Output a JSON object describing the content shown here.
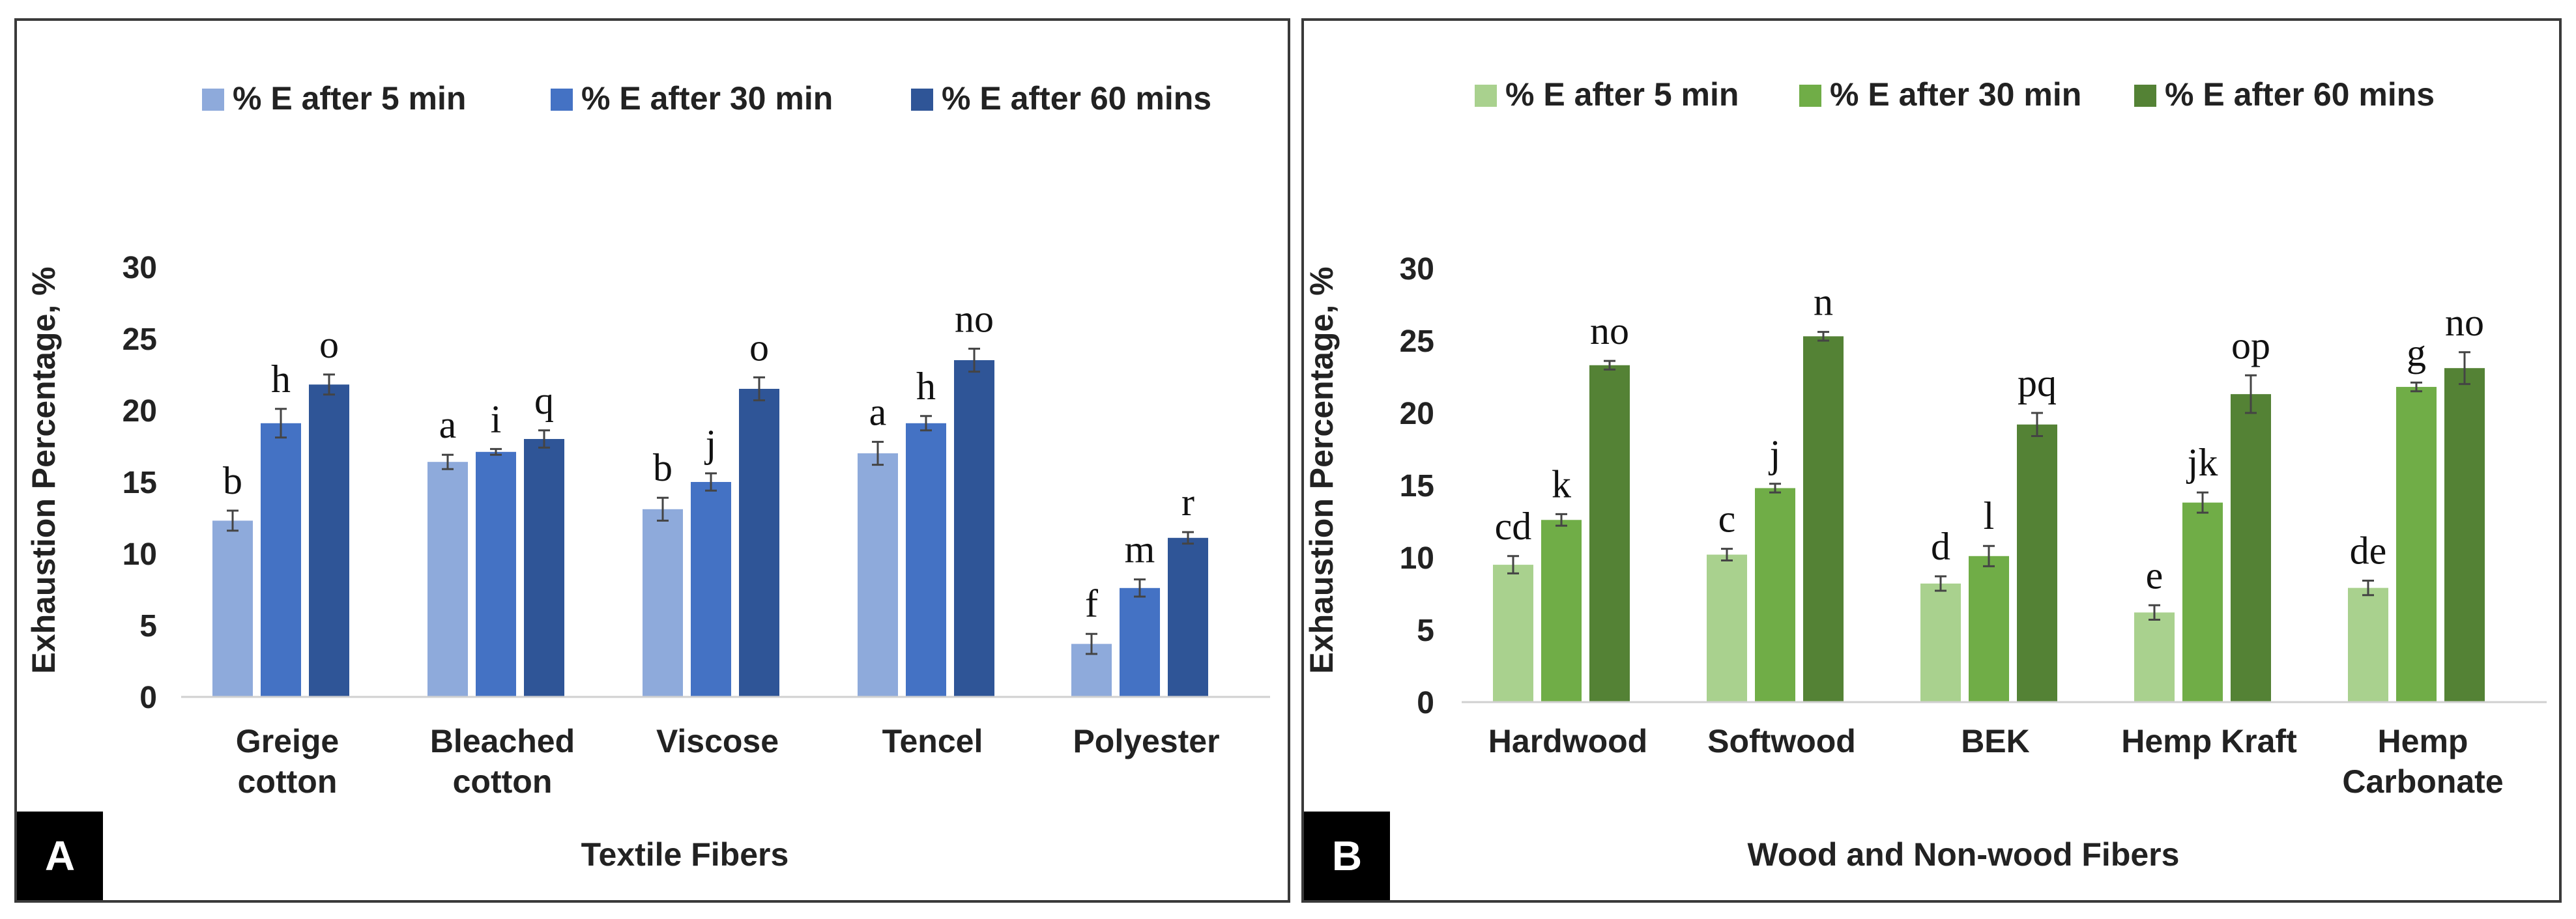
{
  "chart_data": [
    {
      "type": "bar",
      "panel_label": "A",
      "xlabel": "Textile Fibers",
      "ylabel": "Exhaustion Percentage, %",
      "ylim": [
        0,
        30
      ],
      "yticks": [
        "0",
        "5",
        "10",
        "15",
        "20",
        "25",
        "30"
      ],
      "grid": false,
      "legend_position": "top",
      "categories": [
        [
          "Greige",
          "cotton"
        ],
        [
          "Bleached",
          "cotton"
        ],
        [
          "Viscose"
        ],
        [
          "Tencel"
        ],
        [
          "Polyester"
        ]
      ],
      "colors": [
        "#8eaadb",
        "#4472c4",
        "#2f5597"
      ],
      "series": [
        {
          "name": "% E after 5 min",
          "values": [
            12.3,
            16.4,
            13.1,
            17.0,
            3.7
          ],
          "errors": [
            0.7,
            0.5,
            0.8,
            0.8,
            0.7
          ],
          "labels": [
            "b",
            "a",
            "b",
            "a",
            "f"
          ]
        },
        {
          "name": "% E after 30 min",
          "values": [
            19.1,
            17.1,
            15.0,
            19.1,
            7.6
          ],
          "errors": [
            1.0,
            0.2,
            0.6,
            0.5,
            0.6
          ],
          "labels": [
            "h",
            "i",
            "j",
            "h",
            "m"
          ]
        },
        {
          "name": "% E after 60 mins",
          "values": [
            21.8,
            18.0,
            21.5,
            23.5,
            11.1
          ],
          "errors": [
            0.7,
            0.6,
            0.8,
            0.8,
            0.4
          ],
          "labels": [
            "o",
            "q",
            "o",
            "no",
            "r"
          ]
        }
      ]
    },
    {
      "type": "bar",
      "panel_label": "B",
      "xlabel": "Wood and Non-wood Fibers",
      "ylabel": "Exhaustion Percentage, %",
      "ylim": [
        0,
        30
      ],
      "yticks": [
        "0",
        "5",
        "10",
        "15",
        "20",
        "25",
        "30"
      ],
      "grid": false,
      "legend_position": "top",
      "categories": [
        [
          "Hardwood"
        ],
        [
          "Softwood"
        ],
        [
          "BEK"
        ],
        [
          "Hemp Kraft"
        ],
        [
          "Hemp",
          "Carbonate"
        ]
      ],
      "colors": [
        "#a9d18e",
        "#70ad47",
        "#548235"
      ],
      "series": [
        {
          "name": "% E after 5 min",
          "values": [
            9.5,
            10.2,
            8.2,
            6.2,
            7.9
          ],
          "errors": [
            0.6,
            0.4,
            0.5,
            0.5,
            0.5
          ],
          "labels": [
            "cd",
            "c",
            "d",
            "e",
            "de"
          ]
        },
        {
          "name": "% E after 30 min",
          "values": [
            12.6,
            14.8,
            10.1,
            13.8,
            21.8
          ],
          "errors": [
            0.4,
            0.3,
            0.7,
            0.7,
            0.3
          ],
          "labels": [
            "k",
            "j",
            "l",
            "jk",
            "g"
          ]
        },
        {
          "name": "% E after 60 mins",
          "values": [
            23.3,
            25.3,
            19.2,
            21.3,
            23.1
          ],
          "errors": [
            0.3,
            0.3,
            0.8,
            1.3,
            1.1
          ],
          "labels": [
            "no",
            "n",
            "pq",
            "op",
            "no"
          ]
        }
      ]
    }
  ]
}
